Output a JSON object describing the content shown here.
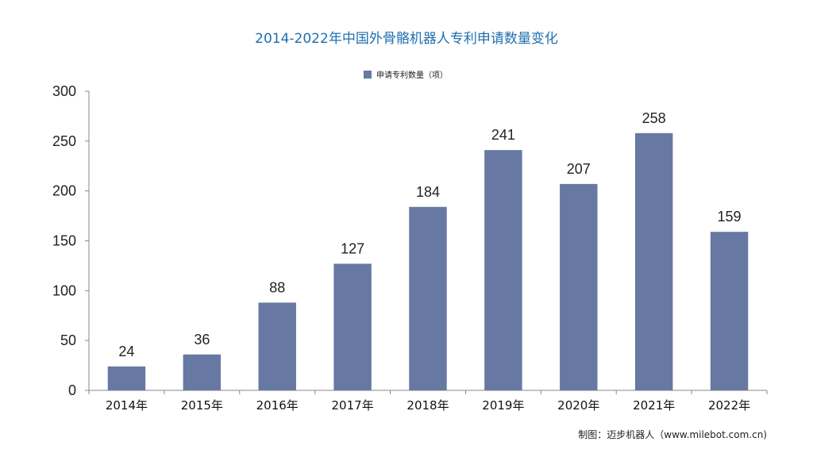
{
  "title": "2014-2022年中国外骨骼机器人专利申请数量变化",
  "source": "制图：迈步机器人（www.milebot.com.cn)",
  "colors": {
    "bar": "#6779a2",
    "title": "#1f6fb0",
    "axis": "#888888"
  },
  "chart_data": {
    "type": "bar",
    "title": "2014-2022年中国外骨骼机器人专利申请数量变化",
    "categories": [
      "2014年",
      "2015年",
      "2016年",
      "2017年",
      "2018年",
      "2019年",
      "2020年",
      "2021年",
      "2022年"
    ],
    "series": [
      {
        "name": "申请专利数量（项）",
        "values": [
          24,
          36,
          88,
          127,
          184,
          241,
          207,
          258,
          159
        ]
      }
    ],
    "ylim": [
      0,
      300
    ],
    "yticks": [
      0,
      50,
      100,
      150,
      200,
      250,
      300
    ],
    "legend": "top-center",
    "grid": false
  }
}
